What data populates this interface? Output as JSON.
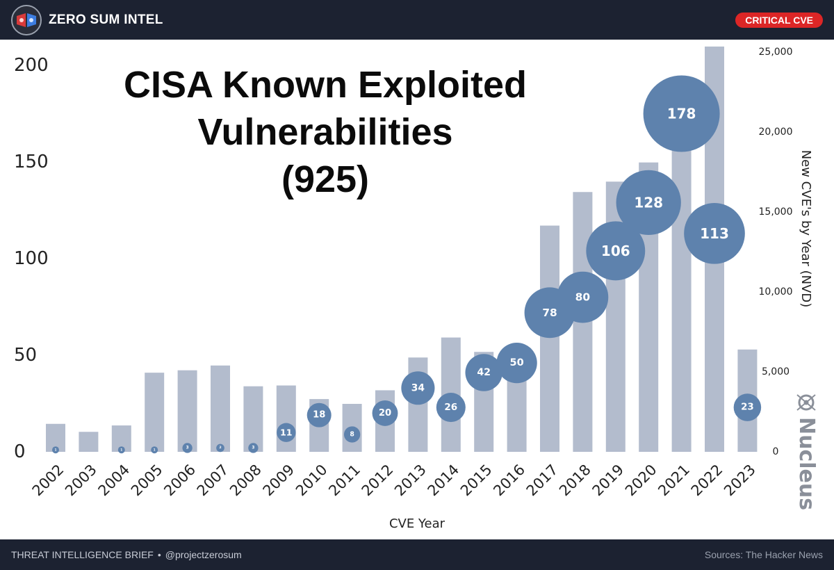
{
  "header": {
    "brand": "ZERO SUM INTEL",
    "badge": "CRITICAL CVE"
  },
  "footer": {
    "left": "THREAT INTELLIGENCE BRIEF",
    "handle": "@projectzerosum",
    "right": "Sources: The Hacker News"
  },
  "chart_data": {
    "type": "bar",
    "title_lines": [
      "CISA Known Exploited",
      "Vulnerabilities",
      "(925)"
    ],
    "xlabel": "CVE Year",
    "ylabel_right": "New CVE's by Year (NVD)",
    "watermark": "Nucleus",
    "categories": [
      "2002",
      "2003",
      "2004",
      "2005",
      "2006",
      "2007",
      "2008",
      "2009",
      "2010",
      "2011",
      "2012",
      "2013",
      "2014",
      "2015",
      "2016",
      "2017",
      "2018",
      "2019",
      "2020",
      "2021",
      "2022",
      "2023"
    ],
    "ylim_left": [
      0,
      200
    ],
    "yticks_left": [
      0,
      50,
      100,
      150,
      200
    ],
    "ylim_right": [
      0,
      25000
    ],
    "yticks_right": [
      0,
      5000,
      10000,
      15000,
      20000,
      25000
    ],
    "yticks_right_labels": [
      "0",
      "5,000",
      "10,000",
      "15,000",
      "20,000",
      "25,000"
    ],
    "series": [
      {
        "name": "New CVE's by Year (NVD)",
        "type": "bar",
        "axis": "right",
        "values": [
          1750,
          1250,
          1650,
          4950,
          5100,
          5400,
          4100,
          4150,
          3300,
          3000,
          3850,
          5900,
          7150,
          6250,
          4800,
          14150,
          16250,
          16900,
          18100,
          22600,
          25350,
          6400
        ]
      },
      {
        "name": "CISA Known Exploited Vulnerabilities",
        "type": "bubble",
        "axis": "left",
        "values": [
          1,
          null,
          1,
          1,
          3,
          2,
          3,
          11,
          18,
          8,
          20,
          34,
          26,
          42,
          50,
          78,
          80,
          106,
          128,
          178,
          113,
          23
        ],
        "labels": [
          "1",
          "",
          "1",
          "1",
          "3",
          "2",
          "3",
          "11",
          "18",
          "8",
          "20",
          "34",
          "26",
          "42",
          "50",
          "78",
          "80",
          "106",
          "128",
          "178",
          "113",
          "23"
        ],
        "y_position": [
          1,
          null,
          1,
          1,
          2,
          2,
          2,
          10,
          19,
          9,
          20,
          33,
          23,
          41,
          46,
          72,
          80,
          104,
          129,
          175,
          113,
          23
        ]
      }
    ],
    "colors": {
      "bar": "#b3bccd",
      "bubble": "#5e82ad",
      "bubble_text": "#ffffff",
      "title": "#0b0b0b",
      "axis_text": "#222222"
    }
  }
}
